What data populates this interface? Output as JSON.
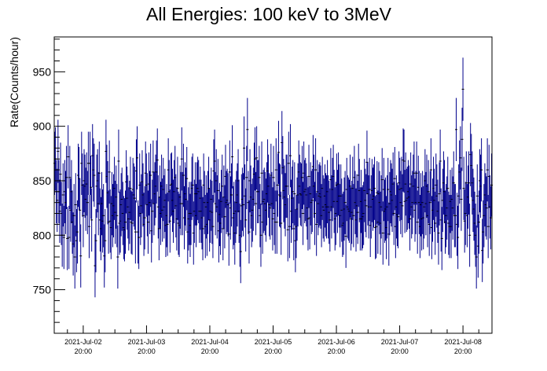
{
  "chart_data": {
    "type": "scatter",
    "title": "All Energies:  100 keV to 3MeV",
    "xlabel": "",
    "ylabel": "Rate(Counts/hour)",
    "x_range_hours": [
      0,
      166
    ],
    "ylim": [
      710,
      982
    ],
    "y_ticks": [
      750,
      800,
      850,
      900,
      950
    ],
    "x_ticks": [
      {
        "hour": 11,
        "date": "2021-Jul-02",
        "time": "20:00"
      },
      {
        "hour": 35,
        "date": "2021-Jul-03",
        "time": "20:00"
      },
      {
        "hour": 59,
        "date": "2021-Jul-04",
        "time": "20:00"
      },
      {
        "hour": 83,
        "date": "2021-Jul-05",
        "time": "20:00"
      },
      {
        "hour": 107,
        "date": "2021-Jul-06",
        "time": "20:00"
      },
      {
        "hour": 131,
        "date": "2021-Jul-07",
        "time": "20:00"
      },
      {
        "hour": 155,
        "date": "2021-Jul-08",
        "time": "20:00"
      }
    ],
    "marker_color": "#00008b",
    "series": [
      {
        "error": 29,
        "values": [
          866,
          870,
          840,
          832,
          877,
          840,
          822,
          856,
          820,
          800,
          837,
          798,
          840,
          830,
          853,
          797,
          872,
          798,
          853,
          823,
          840,
          812,
          792,
          818,
          780,
          828,
          795,
          803,
          855,
          852,
          823,
          781,
          866,
          846,
          818,
          850,
          845,
          833,
          847,
          830,
          866,
          808,
          866,
          844,
          814,
          873,
          860,
          855,
          772,
          795,
          845,
          850,
          829,
          857,
          814,
          806,
          829,
          813,
          818,
          781,
          795,
          877,
          854,
          839,
          812,
          858,
          813,
          807,
          829,
          818,
          827,
          843,
          821,
          835,
          818,
          780,
          868,
          811,
          813,
          828,
          833,
          820,
          807,
          805,
          812,
          849,
          834,
          826,
          815,
          821,
          843,
          812,
          811,
          842,
          837,
          834,
          803,
          859,
          871,
          803,
          798,
          846,
          820,
          827,
          849,
          837,
          810,
          816,
          857,
          846,
          828,
          812,
          847,
          830,
          855,
          804,
          822,
          858,
          829,
          838,
          845,
          858,
          869,
          826,
          806,
          835,
          820,
          845,
          823,
          842,
          826,
          832,
          809,
          818,
          810,
          860,
          840,
          813,
          846,
          847,
          832,
          822,
          840,
          853,
          827,
          815,
          843,
          811,
          809,
          835,
          829,
          870,
          829,
          855,
          816,
          838,
          833,
          852,
          803,
          815,
          820,
          809,
          820,
          843,
          846,
          802,
          822,
          838,
          818,
          838,
          843,
          840,
          822,
          834,
          822,
          816,
          806,
          846,
          830,
          808,
          826,
          810,
          830,
          843,
          814,
          822,
          833,
          821,
          808,
          859,
          868,
          829,
          850,
          826,
          841,
          804,
          819,
          811,
          831,
          845,
          806,
          835,
          817,
          854,
          830,
          832,
          828,
          801,
          858,
          825,
          837,
          872,
          816,
          820,
          802,
          822,
          830,
          837,
          850,
          822,
          800,
          785,
          827,
          833,
          828,
          880,
          836,
          814,
          853,
          897,
          830,
          803,
          850,
          835,
          818,
          823,
          833,
          856,
          870,
          829,
          871,
          840,
          840,
          853,
          818,
          800,
          857,
          812,
          831,
          833,
          829,
          823,
          838,
          859,
          845,
          828,
          825,
          855,
          829,
          815,
          853,
          820,
          812,
          860,
          812,
          846,
          876,
          837,
          836,
          811,
          885,
          862,
          841,
          835,
          828,
          845,
          845,
          805,
          866,
          808,
          873,
          822,
          834,
          840,
          806,
          838,
          795,
          808,
          824,
          837,
          858,
          845,
          838,
          837,
          853,
          820,
          857,
          840,
          842,
          837,
          825,
          815,
          854,
          816,
          838,
          830,
          832,
          863,
          845,
          820,
          860,
          810,
          840,
          829,
          836,
          838,
          835,
          818,
          843,
          826,
          823,
          836,
          828,
          826,
          840,
          826,
          821,
          814,
          851,
          826,
          842,
          854,
          831,
          815,
          820,
          846,
          831,
          847,
          836,
          818,
          836,
          823,
          809,
          811,
          824,
          830,
          799,
          842,
          826,
          824,
          822,
          845,
          815,
          821,
          843,
          818,
          853,
          830,
          814,
          827,
          821,
          855,
          841,
          815,
          831,
          815,
          817,
          820,
          841,
          832,
          827,
          867,
          838,
          826,
          842,
          809,
          826,
          841,
          833,
          836,
          843,
          807,
          808,
          839,
          812,
          838,
          830,
          811,
          826,
          851,
          802,
          842,
          822,
          824,
          807,
          826,
          842,
          801,
          829,
          840,
          837,
          832,
          847,
          820,
          852,
          808,
          826,
          819,
          817,
          848,
          842,
          830,
          843,
          827,
          869,
          868,
          831,
          847,
          832,
          834,
          840,
          835,
          815,
          847,
          826,
          830,
          845,
          857,
          823,
          830,
          857,
          812,
          844,
          830,
          808,
          828,
          815,
          830,
          816,
          826,
          850,
          829,
          845,
          818,
          840,
          810,
          830,
          860,
          807,
          823,
          843,
          832,
          811,
          846,
          836,
          822,
          802,
          838,
          868,
          814,
          797,
          832,
          848,
          840,
          812,
          818,
          825,
          843,
          811,
          808,
          831,
          808,
          833,
          825,
          848,
          818,
          818,
          897,
          810,
          798,
          836,
          858,
          871,
          833,
          888,
          934,
          843,
          813,
          820,
          848,
          818,
          835,
          848,
          800,
          874,
          864,
          848,
          832,
          824,
          811,
          800,
          780,
          836,
          790,
          812,
          850,
          845,
          860,
          786,
          803,
          818,
          837,
          828,
          825,
          860,
          808,
          854,
          826,
          816,
          846
        ]
      }
    ]
  }
}
